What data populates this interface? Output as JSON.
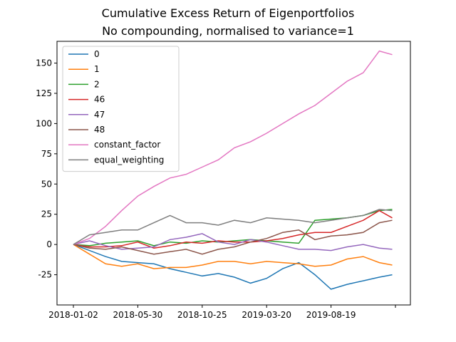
{
  "chart_data": {
    "type": "line",
    "title": "Cumulative Excess Return of Eigenportfolios",
    "subtitle": "No compounding, normalised to variance=1",
    "xlabel": "",
    "ylabel": "",
    "x_tick_labels": [
      "2018-01-02",
      "2018-05-30",
      "2018-10-25",
      "2019-03-20",
      "2019-08-19",
      ""
    ],
    "y_ticks": [
      -25,
      0,
      25,
      50,
      75,
      100,
      125,
      150
    ],
    "ylim": [
      -50,
      168
    ],
    "grid": false,
    "legend_position": "upper left",
    "x_index_range": [
      0,
      500
    ],
    "series": [
      {
        "name": "0",
        "color": "#1f77b4",
        "points": [
          [
            0,
            0
          ],
          [
            25,
            -5
          ],
          [
            50,
            -10
          ],
          [
            75,
            -14
          ],
          [
            100,
            -15
          ],
          [
            125,
            -16
          ],
          [
            150,
            -20
          ],
          [
            175,
            -23
          ],
          [
            200,
            -26
          ],
          [
            225,
            -24
          ],
          [
            250,
            -27
          ],
          [
            275,
            -32
          ],
          [
            300,
            -28
          ],
          [
            325,
            -20
          ],
          [
            350,
            -15
          ],
          [
            375,
            -25
          ],
          [
            400,
            -37
          ],
          [
            425,
            -33
          ],
          [
            450,
            -30
          ],
          [
            475,
            -27
          ],
          [
            495,
            -25
          ]
        ]
      },
      {
        "name": "1",
        "color": "#ff7f0e",
        "points": [
          [
            0,
            0
          ],
          [
            25,
            -8
          ],
          [
            50,
            -16
          ],
          [
            75,
            -18
          ],
          [
            100,
            -16
          ],
          [
            125,
            -20
          ],
          [
            150,
            -19
          ],
          [
            175,
            -19
          ],
          [
            200,
            -17
          ],
          [
            225,
            -14
          ],
          [
            250,
            -14
          ],
          [
            275,
            -16
          ],
          [
            300,
            -14
          ],
          [
            325,
            -15
          ],
          [
            350,
            -16
          ],
          [
            375,
            -18
          ],
          [
            400,
            -17
          ],
          [
            425,
            -12
          ],
          [
            450,
            -10
          ],
          [
            475,
            -15
          ],
          [
            495,
            -17
          ]
        ]
      },
      {
        "name": "2",
        "color": "#2ca02c",
        "points": [
          [
            0,
            0
          ],
          [
            25,
            -1
          ],
          [
            50,
            1
          ],
          [
            75,
            2
          ],
          [
            100,
            3
          ],
          [
            125,
            -1
          ],
          [
            150,
            2
          ],
          [
            175,
            1
          ],
          [
            200,
            3
          ],
          [
            225,
            2
          ],
          [
            250,
            3
          ],
          [
            275,
            4
          ],
          [
            300,
            3
          ],
          [
            325,
            2
          ],
          [
            350,
            1
          ],
          [
            375,
            20
          ],
          [
            400,
            21
          ],
          [
            425,
            22
          ],
          [
            450,
            24
          ],
          [
            475,
            28
          ],
          [
            495,
            29
          ]
        ]
      },
      {
        "name": "46",
        "color": "#d62728",
        "points": [
          [
            0,
            0
          ],
          [
            25,
            -2
          ],
          [
            50,
            -2
          ],
          [
            75,
            -1
          ],
          [
            100,
            2
          ],
          [
            125,
            -3
          ],
          [
            150,
            -1
          ],
          [
            175,
            2
          ],
          [
            200,
            1
          ],
          [
            225,
            3
          ],
          [
            250,
            2
          ],
          [
            275,
            2
          ],
          [
            300,
            3
          ],
          [
            325,
            5
          ],
          [
            350,
            8
          ],
          [
            375,
            10
          ],
          [
            400,
            10
          ],
          [
            425,
            15
          ],
          [
            450,
            20
          ],
          [
            475,
            28
          ],
          [
            495,
            22
          ]
        ]
      },
      {
        "name": "47",
        "color": "#9467bd",
        "points": [
          [
            0,
            0
          ],
          [
            25,
            3
          ],
          [
            50,
            -1
          ],
          [
            75,
            -4
          ],
          [
            100,
            -3
          ],
          [
            125,
            -2
          ],
          [
            150,
            4
          ],
          [
            175,
            6
          ],
          [
            200,
            9
          ],
          [
            225,
            2
          ],
          [
            250,
            0
          ],
          [
            275,
            4
          ],
          [
            300,
            2
          ],
          [
            325,
            -1
          ],
          [
            350,
            -4
          ],
          [
            375,
            -4
          ],
          [
            400,
            -5
          ],
          [
            425,
            -2
          ],
          [
            450,
            0
          ],
          [
            475,
            -3
          ],
          [
            495,
            -4
          ]
        ]
      },
      {
        "name": "48",
        "color": "#8c564b",
        "points": [
          [
            0,
            0
          ],
          [
            25,
            -3
          ],
          [
            50,
            -4
          ],
          [
            75,
            -2
          ],
          [
            100,
            -5
          ],
          [
            125,
            -8
          ],
          [
            150,
            -6
          ],
          [
            175,
            -4
          ],
          [
            200,
            -8
          ],
          [
            225,
            -4
          ],
          [
            250,
            -2
          ],
          [
            275,
            2
          ],
          [
            300,
            5
          ],
          [
            325,
            10
          ],
          [
            350,
            12
          ],
          [
            375,
            4
          ],
          [
            400,
            7
          ],
          [
            425,
            8
          ],
          [
            450,
            10
          ],
          [
            475,
            18
          ],
          [
            495,
            20
          ]
        ]
      },
      {
        "name": "constant_factor",
        "color": "#e377c2",
        "points": [
          [
            0,
            0
          ],
          [
            25,
            5
          ],
          [
            50,
            15
          ],
          [
            75,
            28
          ],
          [
            100,
            40
          ],
          [
            125,
            48
          ],
          [
            150,
            55
          ],
          [
            175,
            58
          ],
          [
            200,
            64
          ],
          [
            225,
            70
          ],
          [
            250,
            80
          ],
          [
            275,
            85
          ],
          [
            300,
            92
          ],
          [
            325,
            100
          ],
          [
            350,
            108
          ],
          [
            375,
            115
          ],
          [
            400,
            125
          ],
          [
            425,
            135
          ],
          [
            450,
            142
          ],
          [
            475,
            160
          ],
          [
            495,
            157
          ]
        ]
      },
      {
        "name": "equal_weighting",
        "color": "#7f7f7f",
        "points": [
          [
            0,
            0
          ],
          [
            25,
            8
          ],
          [
            50,
            10
          ],
          [
            75,
            12
          ],
          [
            100,
            12
          ],
          [
            125,
            18
          ],
          [
            150,
            24
          ],
          [
            175,
            18
          ],
          [
            200,
            18
          ],
          [
            225,
            16
          ],
          [
            250,
            20
          ],
          [
            275,
            18
          ],
          [
            300,
            22
          ],
          [
            325,
            21
          ],
          [
            350,
            20
          ],
          [
            375,
            18
          ],
          [
            400,
            20
          ],
          [
            425,
            22
          ],
          [
            450,
            24
          ],
          [
            475,
            29
          ],
          [
            495,
            28
          ]
        ]
      }
    ]
  }
}
